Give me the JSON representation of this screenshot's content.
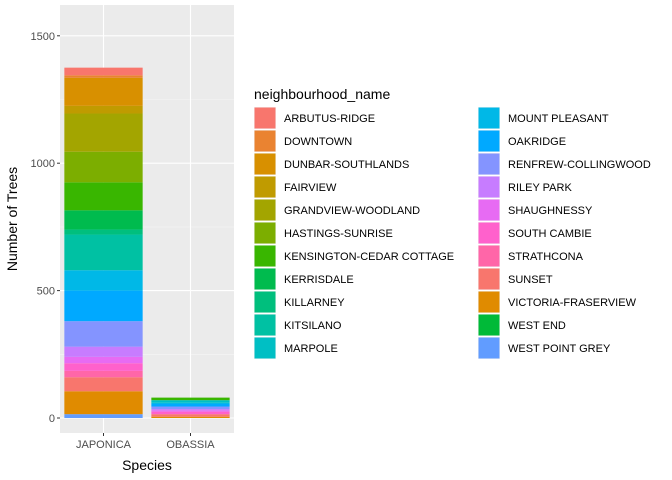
{
  "chart_data": {
    "type": "bar",
    "stacked": true,
    "xlabel": "Species",
    "ylabel": "Number of Trees",
    "categories": [
      "JAPONICA",
      "OBASSIA"
    ],
    "ylim": [
      0,
      1580
    ],
    "yticks": [
      0,
      500,
      1000,
      1500
    ],
    "legend_title": "neighbourhood_name",
    "legend_position": "right",
    "grid": true,
    "series": [
      {
        "name": "ARBUTUS-RIDGE",
        "color": "#F8766D",
        "values": [
          30,
          0
        ]
      },
      {
        "name": "DOWNTOWN",
        "color": "#EA8331",
        "values": [
          10,
          0
        ]
      },
      {
        "name": "DUNBAR-SOUTHLANDS",
        "color": "#D89000",
        "values": [
          110,
          0
        ]
      },
      {
        "name": "FAIRVIEW",
        "color": "#C09B00",
        "values": [
          30,
          0
        ]
      },
      {
        "name": "GRANDVIEW-WOODLAND",
        "color": "#A3A500",
        "values": [
          150,
          0
        ]
      },
      {
        "name": "HASTINGS-SUNRISE",
        "color": "#7CAE00",
        "values": [
          120,
          0
        ]
      },
      {
        "name": "KENSINGTON-CEDAR COTTAGE",
        "color": "#39B600",
        "values": [
          110,
          10
        ]
      },
      {
        "name": "KERRISDALE",
        "color": "#00BB4E",
        "values": [
          75,
          0
        ]
      },
      {
        "name": "KILLARNEY",
        "color": "#00BF7D",
        "values": [
          20,
          0
        ]
      },
      {
        "name": "KITSILANO",
        "color": "#00C1A3",
        "values": [
          140,
          0
        ]
      },
      {
        "name": "MARPOLE",
        "color": "#00BFC4",
        "values": [
          0,
          10
        ]
      },
      {
        "name": "MOUNT PLEASANT",
        "color": "#00B8E7",
        "values": [
          80,
          5
        ]
      },
      {
        "name": "OAKRIDGE",
        "color": "#00A9FF",
        "values": [
          120,
          10
        ]
      },
      {
        "name": "RENFREW-COLLINGWOOD",
        "color": "#8494FF",
        "values": [
          100,
          10
        ]
      },
      {
        "name": "RILEY PARK",
        "color": "#C77CFF",
        "values": [
          40,
          5
        ]
      },
      {
        "name": "SHAUGHNESSY",
        "color": "#E76BF3",
        "values": [
          25,
          5
        ]
      },
      {
        "name": "SOUTH CAMBIE",
        "color": "#FF61CC",
        "values": [
          30,
          10
        ]
      },
      {
        "name": "STRATHCONA",
        "color": "#FF66A8",
        "values": [
          25,
          0
        ]
      },
      {
        "name": "SUNSET",
        "color": "#F8766D",
        "values": [
          55,
          10
        ]
      },
      {
        "name": "VICTORIA-FRASERVIEW",
        "color": "#E08B00",
        "values": [
          90,
          5
        ]
      },
      {
        "name": "WEST END",
        "color": "#00BA38",
        "values": [
          0,
          0
        ]
      },
      {
        "name": "WEST POINT GREY",
        "color": "#619CFF",
        "values": [
          15,
          0
        ]
      }
    ]
  }
}
